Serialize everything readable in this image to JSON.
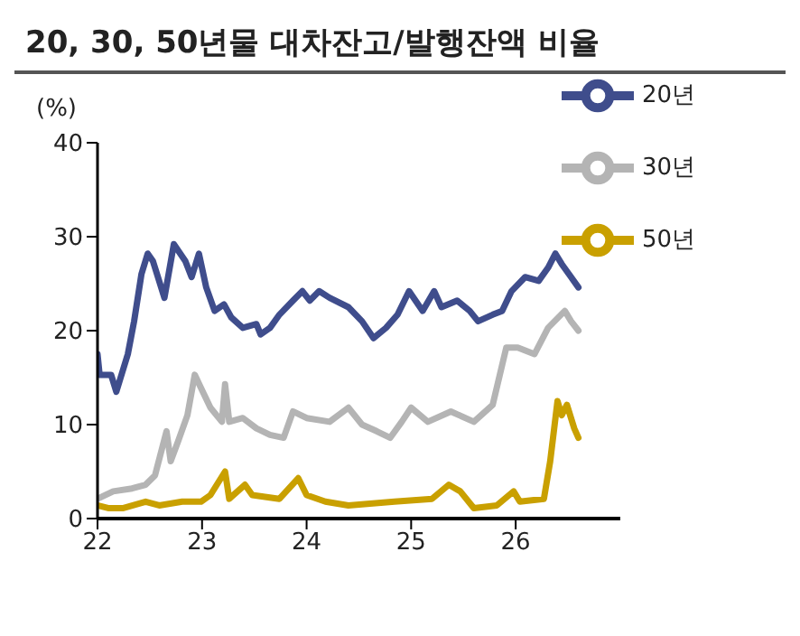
{
  "chart_data": {
    "type": "line",
    "title": "20, 30, 50년물 대차잔고/발행잔액 비율",
    "ylabel": "(%)",
    "xlim": [
      22,
      27
    ],
    "xticks": [
      22,
      23,
      24,
      25,
      26
    ],
    "ylim": [
      0,
      40
    ],
    "yticks": [
      0,
      10,
      20,
      30,
      40
    ],
    "grid": false,
    "legend": "top right",
    "marker": "none",
    "line_style": "solid",
    "series": [
      {
        "name": "20년",
        "color": "#3f4d8c",
        "x": [
          22.0,
          22.02,
          22.13,
          22.18,
          22.29,
          22.35,
          22.42,
          22.48,
          22.53,
          22.64,
          22.73,
          22.84,
          22.9,
          22.97,
          23.04,
          23.12,
          23.21,
          23.28,
          23.39,
          23.52,
          23.56,
          23.65,
          23.74,
          23.87,
          23.96,
          24.03,
          24.12,
          24.22,
          24.4,
          24.53,
          24.64,
          24.76,
          24.87,
          24.98,
          25.11,
          25.22,
          25.29,
          25.44,
          25.56,
          25.64,
          25.78,
          25.87,
          25.96,
          26.09,
          26.22,
          26.31,
          26.38,
          26.44,
          26.51,
          26.6
        ],
        "values": [
          17.5,
          15.3,
          15.3,
          13.5,
          17.5,
          21,
          26,
          28.2,
          27.4,
          23.5,
          29.2,
          27.4,
          25.7,
          28.2,
          24.6,
          22.1,
          22.8,
          21.4,
          20.3,
          20.7,
          19.6,
          20.3,
          21.7,
          23.2,
          24.2,
          23.2,
          24.2,
          23.5,
          22.5,
          21,
          19.2,
          20.3,
          21.7,
          24.2,
          22.1,
          24.2,
          22.5,
          23.2,
          22.1,
          21,
          21.7,
          22.1,
          24.2,
          25.7,
          25.3,
          26.7,
          28.2,
          27.1,
          26,
          24.6
        ]
      },
      {
        "name": "30년",
        "color": "#b4b4b4",
        "x": [
          22.0,
          22.15,
          22.33,
          22.46,
          22.55,
          22.66,
          22.7,
          22.77,
          22.86,
          22.93,
          22.99,
          23.08,
          23.19,
          23.22,
          23.26,
          23.39,
          23.52,
          23.65,
          23.78,
          23.87,
          24.0,
          24.22,
          24.4,
          24.53,
          24.67,
          24.8,
          24.91,
          25.0,
          25.16,
          25.38,
          25.6,
          25.78,
          25.91,
          26.02,
          26.18,
          26.31,
          26.47,
          26.53,
          26.6
        ],
        "values": [
          2.1,
          2.9,
          3.2,
          3.6,
          4.6,
          9.3,
          6.1,
          8.2,
          11,
          15.3,
          13.9,
          11.8,
          10.3,
          14.3,
          10.3,
          10.7,
          9.6,
          8.9,
          8.6,
          11.4,
          10.7,
          10.3,
          11.8,
          10,
          9.3,
          8.6,
          10.3,
          11.8,
          10.3,
          11.4,
          10.3,
          12.1,
          18.2,
          18.2,
          17.5,
          20.3,
          22.1,
          21,
          20
        ]
      },
      {
        "name": "50년",
        "color": "#c9a000",
        "x": [
          22.0,
          22.11,
          22.24,
          22.46,
          22.59,
          22.81,
          22.99,
          23.08,
          23.22,
          23.26,
          23.41,
          23.48,
          23.74,
          23.92,
          24.0,
          24.18,
          24.4,
          24.84,
          25.2,
          25.36,
          25.47,
          25.6,
          25.82,
          25.98,
          26.04,
          26.27,
          26.33,
          26.4,
          26.44,
          26.49,
          26.56,
          26.6
        ],
        "values": [
          1.4,
          1.1,
          1.1,
          1.8,
          1.4,
          1.8,
          1.8,
          2.5,
          5,
          2.1,
          3.6,
          2.5,
          2.1,
          4.3,
          2.5,
          1.8,
          1.4,
          1.8,
          2.1,
          3.6,
          2.9,
          1.1,
          1.4,
          2.9,
          1.8,
          2.1,
          6.1,
          12.5,
          11,
          12.1,
          9.6,
          8.6
        ]
      }
    ]
  }
}
